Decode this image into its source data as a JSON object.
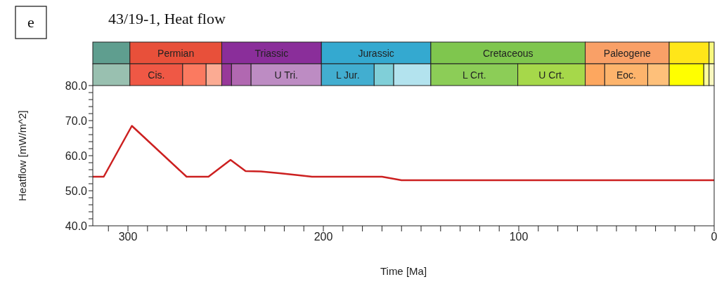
{
  "chart_data": {
    "type": "line",
    "title": "43/19-1, Heat flow",
    "xlabel": "Time [Ma]",
    "ylabel": "Heatflow [mW/m^2]",
    "annotations": [
      "e",
      "Permian",
      "Triassic",
      "Jurassic",
      "Cretaceous",
      "Paleogene",
      "Cis.",
      "U Tri.",
      "L Jur.",
      "L Crt.",
      "U Crt.",
      "Eoc."
    ],
    "x": [
      318,
      312.4,
      298,
      270,
      258.8,
      247.5,
      239.8,
      232,
      222.5,
      214,
      205.8,
      170,
      160,
      0
    ],
    "series": [
      {
        "color": "#cc2020",
        "values": [
          54,
          54,
          68.5,
          54,
          54,
          58.8,
          55.6,
          55.5,
          55,
          54.5,
          54,
          54,
          53,
          53
        ]
      }
    ],
    "xlim": [
      318,
      0
    ],
    "xticks": [
      {
        "value": 310,
        "label": null
      },
      300,
      {
        "value": 290,
        "label": null
      },
      {
        "value": 280,
        "label": null
      },
      {
        "value": 270,
        "label": null
      },
      {
        "value": 260,
        "label": null
      },
      {
        "value": 250,
        "label": null
      },
      {
        "value": 240,
        "label": null
      },
      {
        "value": 230,
        "label": null
      },
      {
        "value": 220,
        "label": null
      },
      {
        "value": 210,
        "label": null
      },
      200,
      {
        "value": 190,
        "label": null
      },
      {
        "value": 180,
        "label": null
      },
      {
        "value": 170,
        "label": null
      },
      {
        "value": 160,
        "label": null
      },
      {
        "value": 150,
        "label": null
      },
      {
        "value": 140,
        "label": null
      },
      {
        "value": 130,
        "label": null
      },
      {
        "value": 120,
        "label": null
      },
      {
        "value": 110,
        "label": null
      },
      100,
      {
        "value": 90,
        "label": null
      },
      {
        "value": 80,
        "label": null
      },
      {
        "value": 70,
        "label": null
      },
      {
        "value": 60,
        "label": null
      },
      {
        "value": 50,
        "label": null
      },
      {
        "value": 40,
        "label": null
      },
      {
        "value": 30,
        "label": null
      },
      {
        "value": 20,
        "label": null
      },
      {
        "value": 10,
        "label": null
      },
      0
    ],
    "ylim": [
      40,
      80
    ],
    "yticks": [
      {
        "value": 40,
        "label": "40.0"
      },
      {
        "value": 42,
        "label": null
      },
      {
        "value": 44,
        "label": null
      },
      {
        "value": 46,
        "label": null
      },
      {
        "value": 48,
        "label": null
      },
      {
        "value": 50,
        "label": "50.0"
      },
      {
        "value": 52,
        "label": null
      },
      {
        "value": 54,
        "label": null
      },
      {
        "value": 56,
        "label": null
      },
      {
        "value": 58,
        "label": null
      },
      {
        "value": 60,
        "label": "60.0"
      },
      {
        "value": 62,
        "label": null
      },
      {
        "value": 64,
        "label": null
      },
      {
        "value": 66,
        "label": null
      },
      {
        "value": 68,
        "label": null
      },
      {
        "value": 70,
        "label": "70.0"
      },
      {
        "value": 72,
        "label": null
      },
      {
        "value": 74,
        "label": null
      },
      {
        "value": 76,
        "label": null
      },
      {
        "value": 78,
        "label": null
      },
      {
        "value": 80,
        "label": "80.0"
      }
    ],
    "grid": false,
    "legend": false,
    "marker": "none",
    "line_style": "solid"
  }
}
